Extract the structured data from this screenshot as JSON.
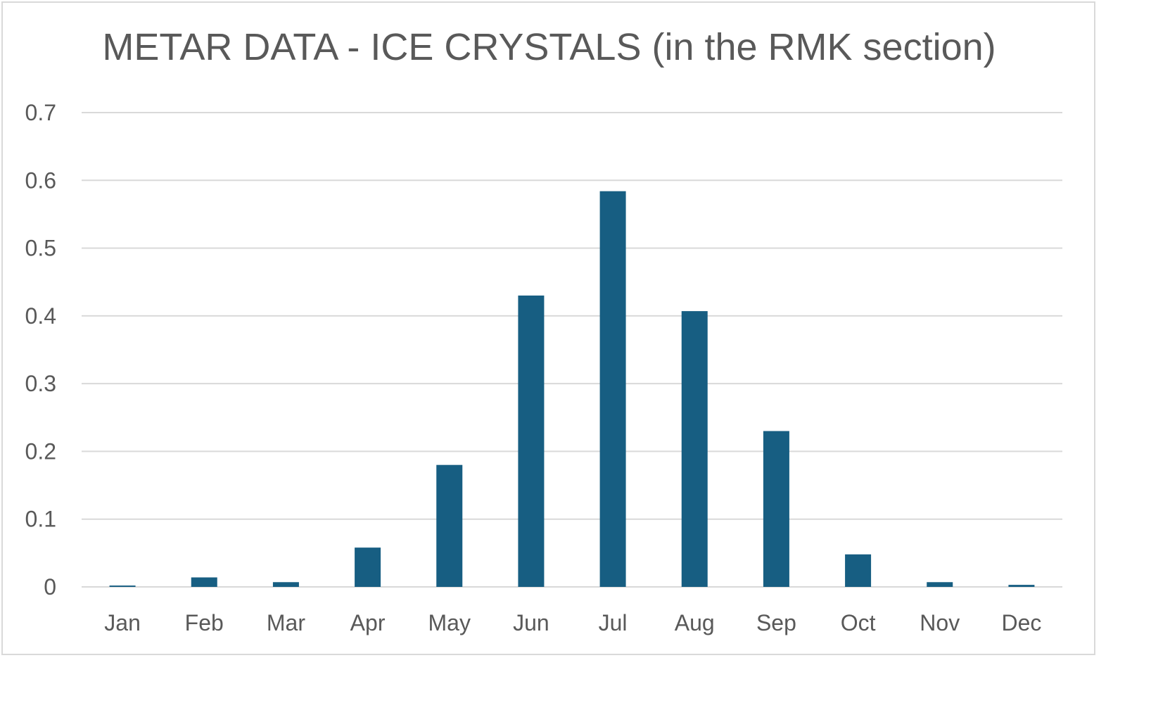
{
  "chart_data": {
    "type": "bar",
    "title": "METAR DATA - ICE CRYSTALS (in the RMK section)",
    "xlabel": "",
    "ylabel": "",
    "categories": [
      "Jan",
      "Feb",
      "Mar",
      "Apr",
      "May",
      "Jun",
      "Jul",
      "Aug",
      "Sep",
      "Oct",
      "Nov",
      "Dec"
    ],
    "values": [
      0.002,
      0.014,
      0.007,
      0.058,
      0.18,
      0.43,
      0.584,
      0.407,
      0.23,
      0.048,
      0.007,
      0.003
    ],
    "ylim": [
      0,
      0.7
    ],
    "yticks": [
      "0",
      "0.1",
      "0.2",
      "0.3",
      "0.4",
      "0.5",
      "0.6",
      "0.7"
    ],
    "grid": true,
    "legend": "none",
    "bar_color": "#175e82",
    "grid_color": "#d9d9d9",
    "text_color": "#595959"
  }
}
